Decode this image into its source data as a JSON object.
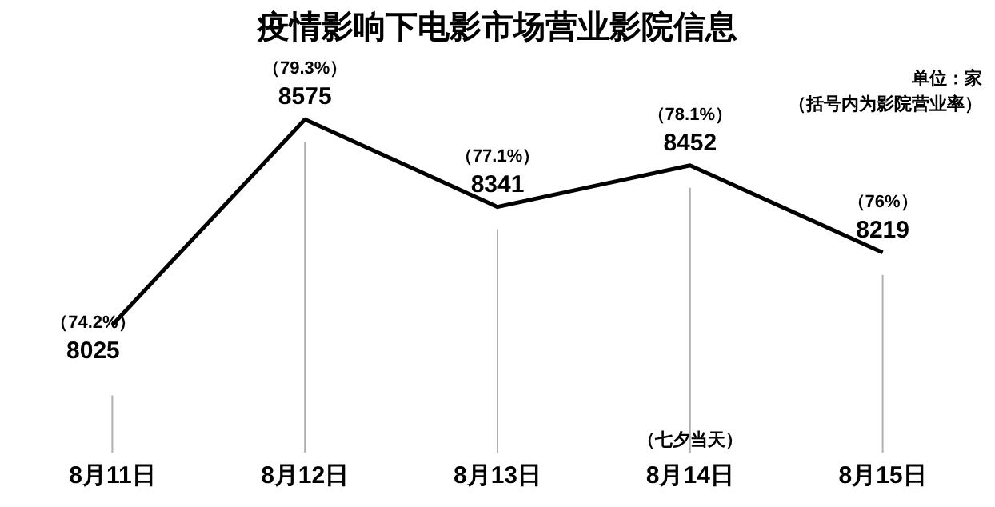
{
  "chart_data": {
    "type": "line",
    "title": "疫情影响下电影市场营业影院信息",
    "categories": [
      "8月11日",
      "8月12日",
      "8月13日",
      "8月14日",
      "8月15日"
    ],
    "series": [
      {
        "color": "#000000",
        "values": [
          8025,
          8575,
          8341,
          8452,
          8219
        ]
      }
    ],
    "data_labels": true,
    "grid": "x",
    "legend": false,
    "marker": "none",
    "line_style": "solid",
    "tick_labels": "x",
    "annotations": [
      "单位：家",
      "（括号内为影院营业率）",
      {
        "text": "（74.2%）",
        "x": "8月11日",
        "y": 8025
      },
      {
        "text": "（79.3%）",
        "x": "8月12日",
        "y": 8575
      },
      {
        "text": "（77.1%）",
        "x": "8月13日",
        "y": 8341
      },
      {
        "text": "（78.1%）",
        "x": "8月14日",
        "y": 8452
      },
      {
        "text": "（76%）",
        "x": "8月15日",
        "y": 8219
      },
      "（七夕当天）"
    ]
  }
}
